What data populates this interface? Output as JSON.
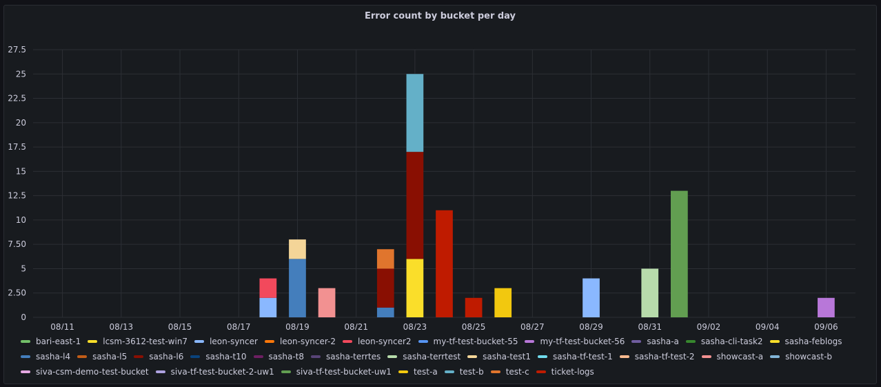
{
  "panel": {
    "title": "Error count by bucket per day"
  },
  "chart_data": {
    "type": "bar",
    "stacked": true,
    "title": "Error count by bucket per day",
    "xlabel": "",
    "ylabel": "",
    "ylim": [
      0,
      27.5
    ],
    "yticks": [
      "0",
      "2.50",
      "5",
      "7.50",
      "10",
      "12.5",
      "15",
      "17.5",
      "20",
      "22.5",
      "25",
      "27.5"
    ],
    "ytick_values": [
      0,
      2.5,
      5,
      7.5,
      10,
      12.5,
      15,
      17.5,
      20,
      22.5,
      25,
      27.5
    ],
    "xlim": [
      "08/10",
      "09/07"
    ],
    "xticks": [
      "08/11",
      "08/13",
      "08/15",
      "08/17",
      "08/19",
      "08/21",
      "08/23",
      "08/25",
      "08/27",
      "08/29",
      "08/31",
      "09/02",
      "09/04",
      "09/06"
    ],
    "grid": true,
    "legend_position": "bottom",
    "series": [
      {
        "name": "bari-east-1",
        "color": "#73bf69",
        "points": []
      },
      {
        "name": "lcsm-3612-test-win7",
        "color": "#fade2a",
        "points": []
      },
      {
        "name": "leon-syncer",
        "color": "#8ab8ff",
        "points": [
          {
            "x": "08/18",
            "y": 2
          }
        ]
      },
      {
        "name": "leon-syncer-2",
        "color": "#ff780a",
        "points": []
      },
      {
        "name": "leon-syncer2",
        "color": "#f2495c",
        "points": [
          {
            "x": "08/18",
            "y": 2
          }
        ]
      },
      {
        "name": "my-tf-test-bucket-55",
        "color": "#5794f2",
        "points": []
      },
      {
        "name": "my-tf-test-bucket-56",
        "color": "#b877d9",
        "points": [
          {
            "x": "09/06",
            "y": 2
          }
        ]
      },
      {
        "name": "sasha-a",
        "color": "#705da0",
        "points": []
      },
      {
        "name": "sasha-cli-task2",
        "color": "#37872d",
        "points": []
      },
      {
        "name": "sasha-feblogs",
        "color": "#fade2a",
        "points": [
          {
            "x": "08/23",
            "y": 6
          }
        ]
      },
      {
        "name": "sasha-l4",
        "color": "#447ebc",
        "points": [
          {
            "x": "08/19",
            "y": 6
          },
          {
            "x": "08/22",
            "y": 1
          }
        ]
      },
      {
        "name": "sasha-l5",
        "color": "#c15c17",
        "points": []
      },
      {
        "name": "sasha-l6",
        "color": "#890f02",
        "points": [
          {
            "x": "08/22",
            "y": 4
          },
          {
            "x": "08/23",
            "y": 11
          }
        ]
      },
      {
        "name": "sasha-t10",
        "color": "#0a437c",
        "points": []
      },
      {
        "name": "sasha-t8",
        "color": "#6d1f62",
        "points": []
      },
      {
        "name": "sasha-terrtes",
        "color": "#584477",
        "points": []
      },
      {
        "name": "sasha-terrtest",
        "color": "#b7dbab",
        "points": [
          {
            "x": "08/31",
            "y": 5
          }
        ]
      },
      {
        "name": "sasha-test1",
        "color": "#f4d598",
        "points": [
          {
            "x": "08/19",
            "y": 2
          }
        ]
      },
      {
        "name": "sasha-tf-test-1",
        "color": "#70dbed",
        "points": []
      },
      {
        "name": "sasha-tf-test-2",
        "color": "#f9ba8f",
        "points": []
      },
      {
        "name": "showcast-a",
        "color": "#f29191",
        "points": [
          {
            "x": "08/20",
            "y": 3
          }
        ]
      },
      {
        "name": "showcast-b",
        "color": "#82b5d8",
        "points": []
      },
      {
        "name": "siva-csm-demo-test-bucket",
        "color": "#e5a8e2",
        "points": []
      },
      {
        "name": "siva-tf-test-bucket-2-uw1",
        "color": "#aea2e0",
        "points": []
      },
      {
        "name": "siva-tf-test-bucket-uw1",
        "color": "#629e51",
        "points": [
          {
            "x": "09/01",
            "y": 13
          }
        ]
      },
      {
        "name": "test-a",
        "color": "#f2c80f",
        "points": [
          {
            "x": "08/26",
            "y": 3
          }
        ]
      },
      {
        "name": "test-b",
        "color": "#64b0c8",
        "points": [
          {
            "x": "08/23",
            "y": 8
          }
        ]
      },
      {
        "name": "test-c",
        "color": "#e0752d",
        "points": [
          {
            "x": "08/22",
            "y": 2
          }
        ]
      },
      {
        "name": "ticket-logs",
        "color": "#bf1b00",
        "points": [
          {
            "x": "08/24",
            "y": 11
          },
          {
            "x": "08/25",
            "y": 2
          }
        ]
      },
      {
        "name": "leon-syncer",
        "color": "#8ab8ff",
        "points": [
          {
            "x": "08/29",
            "y": 4
          }
        ]
      }
    ]
  }
}
